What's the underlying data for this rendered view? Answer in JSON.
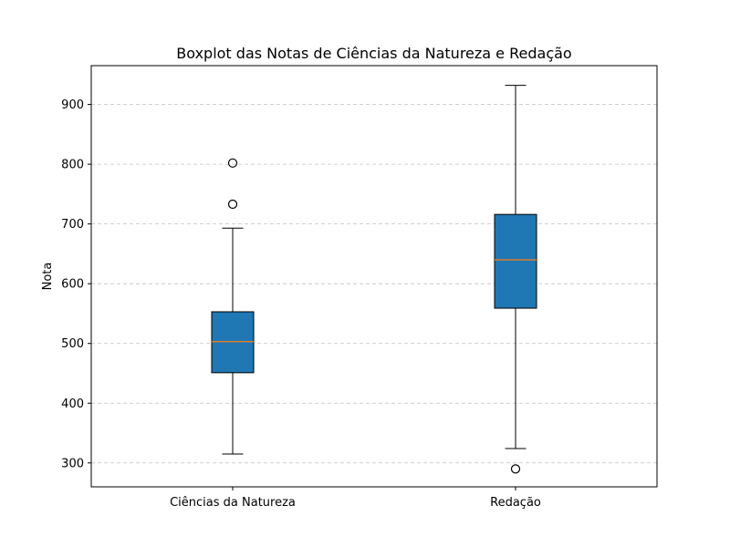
{
  "chart_data": {
    "type": "boxplot",
    "title": "Boxplot das Notas de Ciências da Natureza e Redação",
    "xlabel": "",
    "ylabel": "Nota",
    "ylim": [
      260,
      965
    ],
    "yticks": [
      300,
      400,
      500,
      600,
      700,
      800,
      900
    ],
    "grid": "y-dashed",
    "box_color": "#1f77b4",
    "median_color": "#ff7f0e",
    "categories": [
      "Ciências da Natureza",
      "Redação"
    ],
    "boxes": [
      {
        "whisker_low": 315,
        "q1": 451,
        "median": 503,
        "q3": 553,
        "whisker_high": 693,
        "outliers": [
          733,
          802
        ]
      },
      {
        "whisker_low": 324,
        "q1": 559,
        "median": 640,
        "q3": 716,
        "whisker_high": 932,
        "outliers": [
          290
        ]
      }
    ]
  }
}
